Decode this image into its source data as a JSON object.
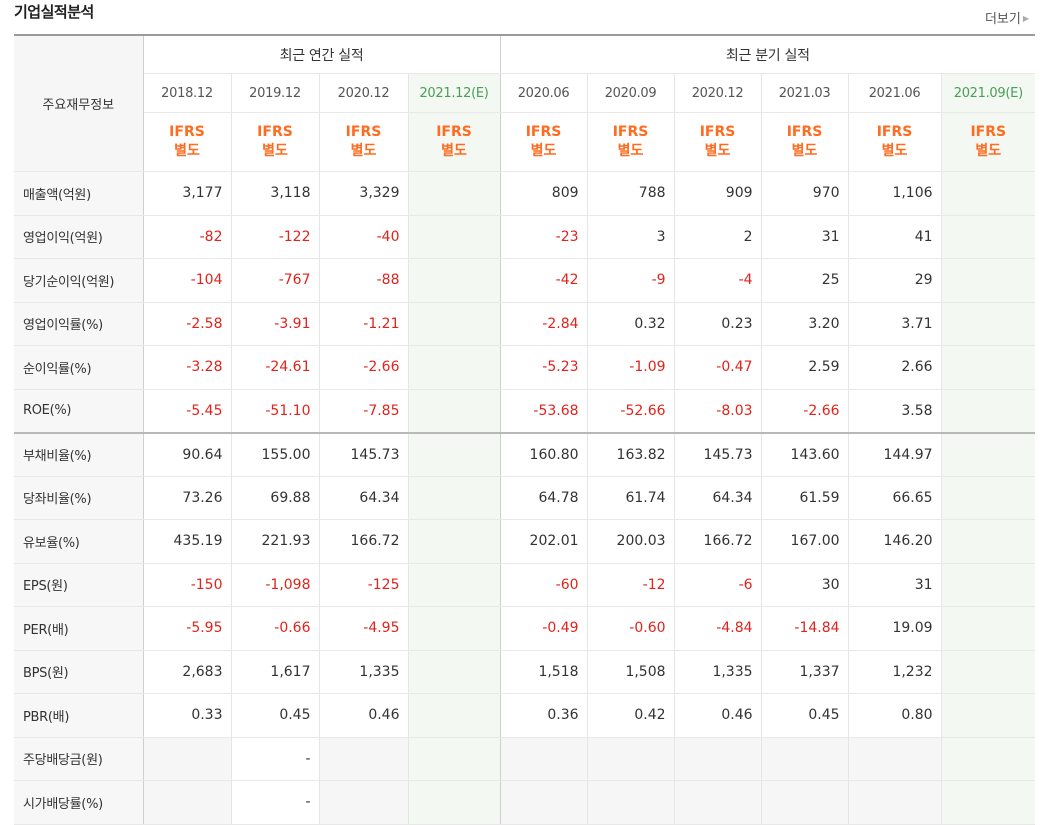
{
  "header": {
    "title": "기업실적분석",
    "more_label": "더보기"
  },
  "table": {
    "row_header_label": "주요재무정보",
    "annual_group_label": "최근 연간 실적",
    "quarter_group_label": "최근 분기 실적",
    "annual_periods": [
      "2018.12",
      "2019.12",
      "2020.12",
      "2021.12(E)"
    ],
    "quarter_periods": [
      "2020.06",
      "2020.09",
      "2020.12",
      "2021.03",
      "2021.06",
      "2021.09(E)"
    ],
    "ifrs_line1": "IFRS",
    "ifrs_line2": "별도",
    "rows": [
      {
        "label": "매출액(억원)",
        "annual": [
          "3,177",
          "3,118",
          "3,329",
          ""
        ],
        "quarter": [
          "809",
          "788",
          "909",
          "970",
          "1,106",
          ""
        ]
      },
      {
        "label": "영업이익(억원)",
        "annual": [
          "-82",
          "-122",
          "-40",
          ""
        ],
        "quarter": [
          "-23",
          "3",
          "2",
          "31",
          "41",
          ""
        ]
      },
      {
        "label": "당기순이익(억원)",
        "annual": [
          "-104",
          "-767",
          "-88",
          ""
        ],
        "quarter": [
          "-42",
          "-9",
          "-4",
          "25",
          "29",
          ""
        ]
      },
      {
        "label": "영업이익률(%)",
        "annual": [
          "-2.58",
          "-3.91",
          "-1.21",
          ""
        ],
        "quarter": [
          "-2.84",
          "0.32",
          "0.23",
          "3.20",
          "3.71",
          ""
        ]
      },
      {
        "label": "순이익률(%)",
        "annual": [
          "-3.28",
          "-24.61",
          "-2.66",
          ""
        ],
        "quarter": [
          "-5.23",
          "-1.09",
          "-0.47",
          "2.59",
          "2.66",
          ""
        ]
      },
      {
        "label": "ROE(%)",
        "annual": [
          "-5.45",
          "-51.10",
          "-7.85",
          ""
        ],
        "quarter": [
          "-53.68",
          "-52.66",
          "-8.03",
          "-2.66",
          "3.58",
          ""
        ]
      },
      {
        "label": "부채비율(%)",
        "annual": [
          "90.64",
          "155.00",
          "145.73",
          ""
        ],
        "quarter": [
          "160.80",
          "163.82",
          "145.73",
          "143.60",
          "144.97",
          ""
        ]
      },
      {
        "label": "당좌비율(%)",
        "annual": [
          "73.26",
          "69.88",
          "64.34",
          ""
        ],
        "quarter": [
          "64.78",
          "61.74",
          "64.34",
          "61.59",
          "66.65",
          ""
        ]
      },
      {
        "label": "유보율(%)",
        "annual": [
          "435.19",
          "221.93",
          "166.72",
          ""
        ],
        "quarter": [
          "202.01",
          "200.03",
          "166.72",
          "167.00",
          "146.20",
          ""
        ]
      },
      {
        "label": "EPS(원)",
        "annual": [
          "-150",
          "-1,098",
          "-125",
          ""
        ],
        "quarter": [
          "-60",
          "-12",
          "-6",
          "30",
          "31",
          ""
        ]
      },
      {
        "label": "PER(배)",
        "annual": [
          "-5.95",
          "-0.66",
          "-4.95",
          ""
        ],
        "quarter": [
          "-0.49",
          "-0.60",
          "-4.84",
          "-14.84",
          "19.09",
          ""
        ]
      },
      {
        "label": "BPS(원)",
        "annual": [
          "2,683",
          "1,617",
          "1,335",
          ""
        ],
        "quarter": [
          "1,518",
          "1,508",
          "1,335",
          "1,337",
          "1,232",
          ""
        ]
      },
      {
        "label": "PBR(배)",
        "annual": [
          "0.33",
          "0.45",
          "0.46",
          ""
        ],
        "quarter": [
          "0.36",
          "0.42",
          "0.46",
          "0.45",
          "0.80",
          ""
        ]
      },
      {
        "label": "주당배당금(원)",
        "annual": [
          "",
          "-",
          "",
          ""
        ],
        "quarter": [
          "",
          "",
          "",
          "",
          "",
          ""
        ]
      },
      {
        "label": "시가배당률(%)",
        "annual": [
          "",
          "-",
          "",
          ""
        ],
        "quarter": [
          "",
          "",
          "",
          "",
          "",
          ""
        ]
      }
    ]
  },
  "colors": {
    "negative": "#e0231b",
    "ifrs": "#ff6b1f",
    "estimate_bg": "#f3f8f3",
    "estimate_text": "#4a9e55"
  }
}
